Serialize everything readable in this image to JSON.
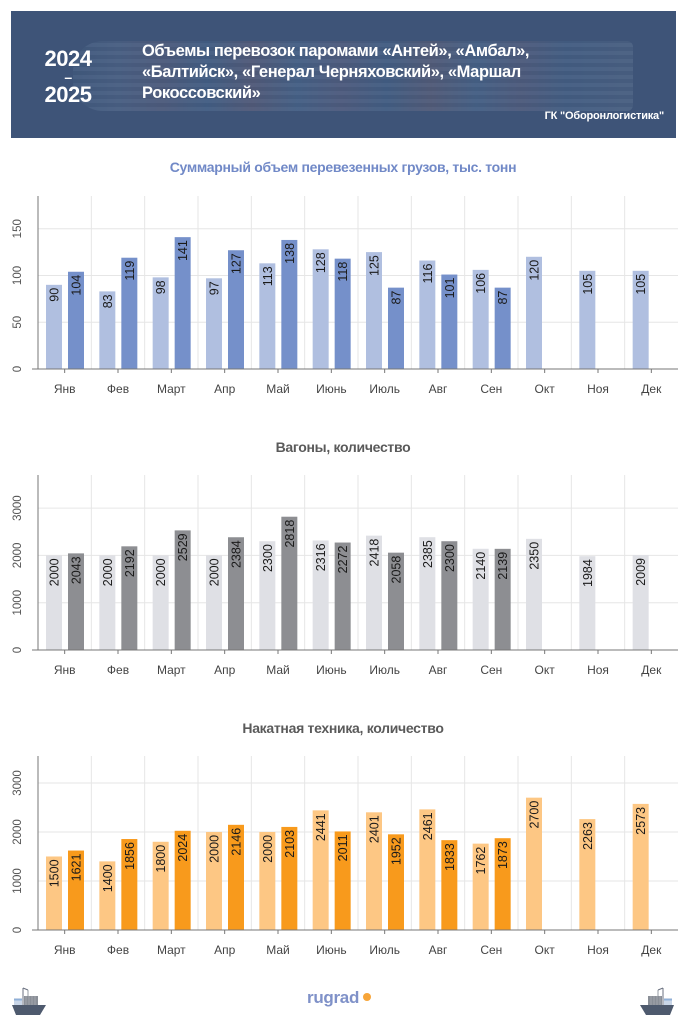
{
  "header": {
    "year_start": "2024",
    "year_dash": "–",
    "year_end": "2025",
    "title": "Объемы перевозок паромами «Антей», «Амбал», «Балтийск», «Генерал Черняховский», «Маршал Рокоссовский»",
    "source": "ГК \"Оборонлогистика\""
  },
  "footer": {
    "logo": "rugrad",
    "left_icon": "cargo-ship-icon",
    "right_icon": "cargo-ship-icon"
  },
  "colors": {
    "header_bg": "#3e5578",
    "chart1_title": "#7189c7",
    "chart1_2024": "#b0bfe0",
    "chart1_2025": "#7590ca",
    "chart2_title": "#5a5a5a",
    "chart2_2024": "#dfe0e5",
    "chart2_2025": "#8d8e92",
    "chart3_title": "#5a5a5a",
    "chart3_2024": "#fdc784",
    "chart3_2025": "#f89a1c",
    "logo_dot": "#f7a539"
  },
  "chart_data": [
    {
      "type": "bar",
      "title": "Суммарный объем перевезенных грузов, тыс. тонн",
      "categories": [
        "Янв",
        "Фев",
        "Март",
        "Апр",
        "Май",
        "Июнь",
        "Июль",
        "Авг",
        "Сен",
        "Окт",
        "Ноя",
        "Дек"
      ],
      "series": [
        {
          "name": "2024",
          "values": [
            90,
            83,
            98,
            97,
            113,
            128,
            125,
            116,
            106,
            120,
            105,
            105
          ]
        },
        {
          "name": "2025",
          "values": [
            104,
            119,
            141,
            127,
            138,
            118,
            87,
            101,
            87,
            null,
            null,
            null
          ]
        }
      ],
      "yticks": [
        0,
        50,
        100,
        150
      ],
      "ylim": [
        0,
        185
      ],
      "xlabel": "",
      "ylabel": "",
      "grid": true,
      "legend": "none"
    },
    {
      "type": "bar",
      "title": "Вагоны, количество",
      "categories": [
        "Янв",
        "Фев",
        "Март",
        "Апр",
        "Май",
        "Июнь",
        "Июль",
        "Авг",
        "Сен",
        "Окт",
        "Ноя",
        "Дек"
      ],
      "series": [
        {
          "name": "2024",
          "values": [
            2000,
            2000,
            2000,
            2000,
            2300,
            2316,
            2418,
            2385,
            2140,
            2350,
            1984,
            2009
          ]
        },
        {
          "name": "2025",
          "values": [
            2043,
            2192,
            2529,
            2384,
            2818,
            2272,
            2058,
            2300,
            2139,
            null,
            null,
            null
          ]
        }
      ],
      "yticks": [
        0,
        1000,
        2000,
        3000
      ],
      "ylim": [
        0,
        3700
      ],
      "xlabel": "",
      "ylabel": "",
      "grid": true,
      "legend": "none"
    },
    {
      "type": "bar",
      "title": "Накатная техника, количество",
      "categories": [
        "Янв",
        "Фев",
        "Март",
        "Апр",
        "Май",
        "Июнь",
        "Июль",
        "Авг",
        "Сен",
        "Окт",
        "Ноя",
        "Дек"
      ],
      "series": [
        {
          "name": "2024",
          "values": [
            1500,
            1400,
            1800,
            2000,
            2000,
            2441,
            2401,
            2461,
            1762,
            2700,
            2263,
            2573
          ]
        },
        {
          "name": "2025",
          "values": [
            1621,
            1856,
            2024,
            2146,
            2103,
            2011,
            1952,
            1833,
            1873,
            null,
            null,
            null
          ]
        }
      ],
      "yticks": [
        0,
        1000,
        2000,
        3000
      ],
      "ylim": [
        0,
        3550
      ],
      "xlabel": "",
      "ylabel": "",
      "grid": true,
      "legend": "none"
    }
  ]
}
